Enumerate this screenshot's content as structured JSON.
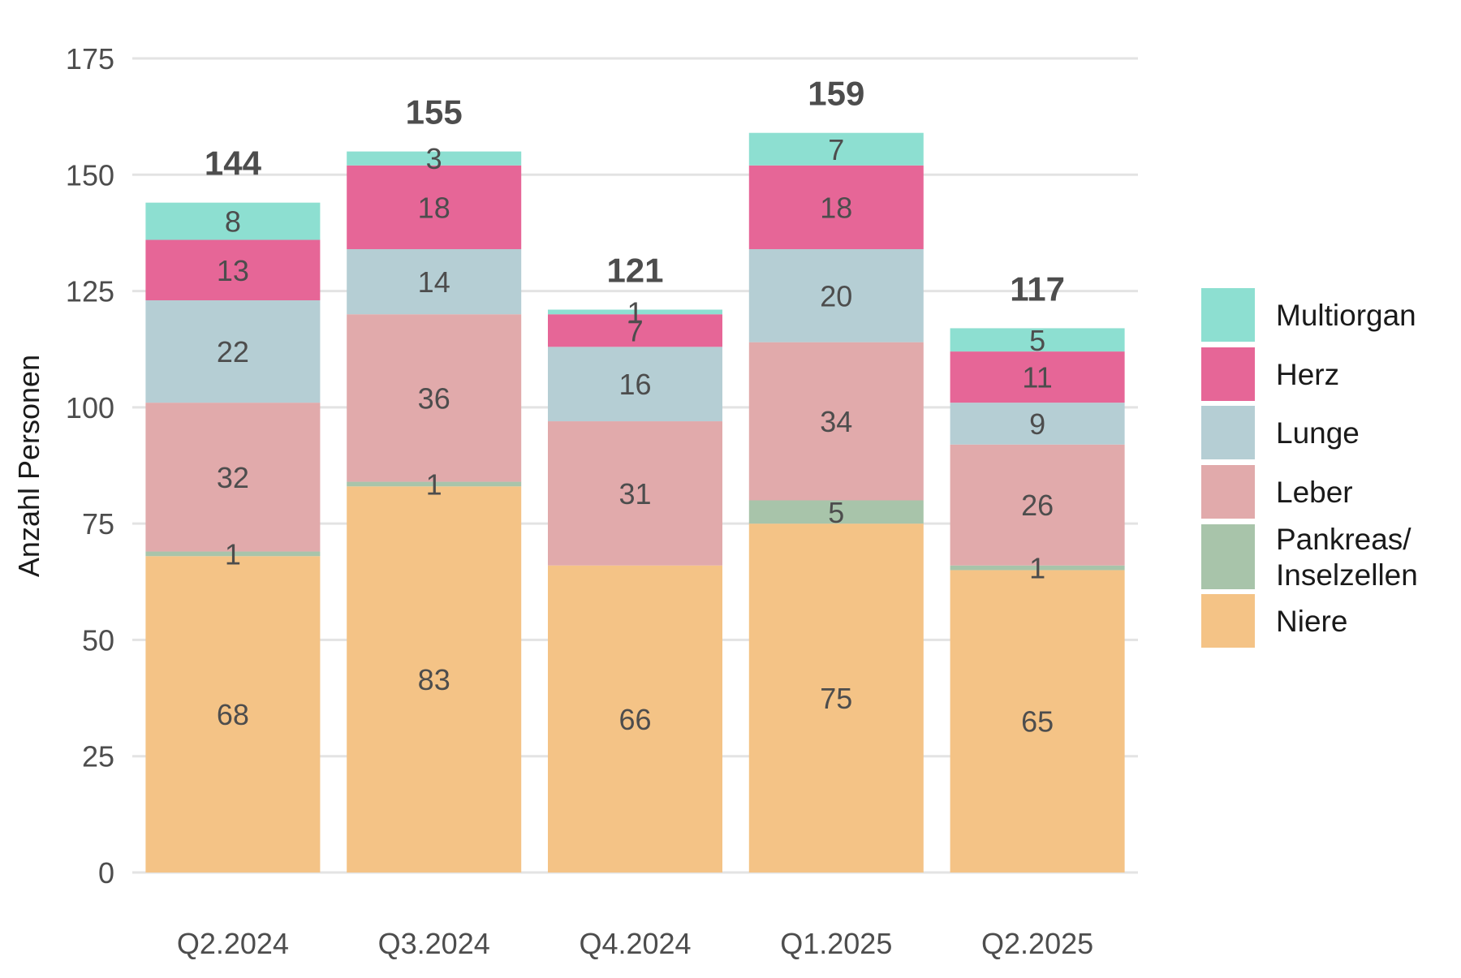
{
  "chart_data": {
    "type": "bar",
    "stacked": true,
    "categories": [
      "Q2.2024",
      "Q3.2024",
      "Q4.2024",
      "Q1.2025",
      "Q2.2025"
    ],
    "series": [
      {
        "name": "Niere",
        "color": "#f4c386",
        "values": [
          68,
          83,
          66,
          75,
          65
        ]
      },
      {
        "name": "Pankreas/ Inselzellen",
        "color": "#a8c4aa",
        "values": [
          1,
          1,
          0,
          5,
          1
        ]
      },
      {
        "name": "Leber",
        "color": "#e1aaab",
        "values": [
          32,
          36,
          31,
          34,
          26
        ]
      },
      {
        "name": "Lunge",
        "color": "#b5ced4",
        "values": [
          22,
          14,
          16,
          20,
          9
        ]
      },
      {
        "name": "Herz",
        "color": "#e66697",
        "values": [
          13,
          18,
          7,
          18,
          11
        ]
      },
      {
        "name": "Multiorgan",
        "color": "#8ddfd1",
        "values": [
          8,
          3,
          1,
          7,
          5
        ]
      }
    ],
    "totals": [
      144,
      155,
      121,
      159,
      117
    ],
    "ylabel": "Anzahl Personen",
    "xlabel": "",
    "ylim": [
      0,
      175
    ],
    "yticks": [
      0,
      25,
      50,
      75,
      100,
      125,
      150,
      175
    ],
    "grid": true,
    "legend": {
      "position": "right",
      "items": [
        {
          "label_lines": [
            "Multiorgan"
          ],
          "series": "Multiorgan"
        },
        {
          "label_lines": [
            "Herz"
          ],
          "series": "Herz"
        },
        {
          "label_lines": [
            "Lunge"
          ],
          "series": "Lunge"
        },
        {
          "label_lines": [
            "Leber"
          ],
          "series": "Leber"
        },
        {
          "label_lines": [
            "Pankreas/",
            "Inselzellen"
          ],
          "series": "Pankreas/ Inselzellen"
        },
        {
          "label_lines": [
            "Niere"
          ],
          "series": "Niere"
        }
      ]
    }
  }
}
